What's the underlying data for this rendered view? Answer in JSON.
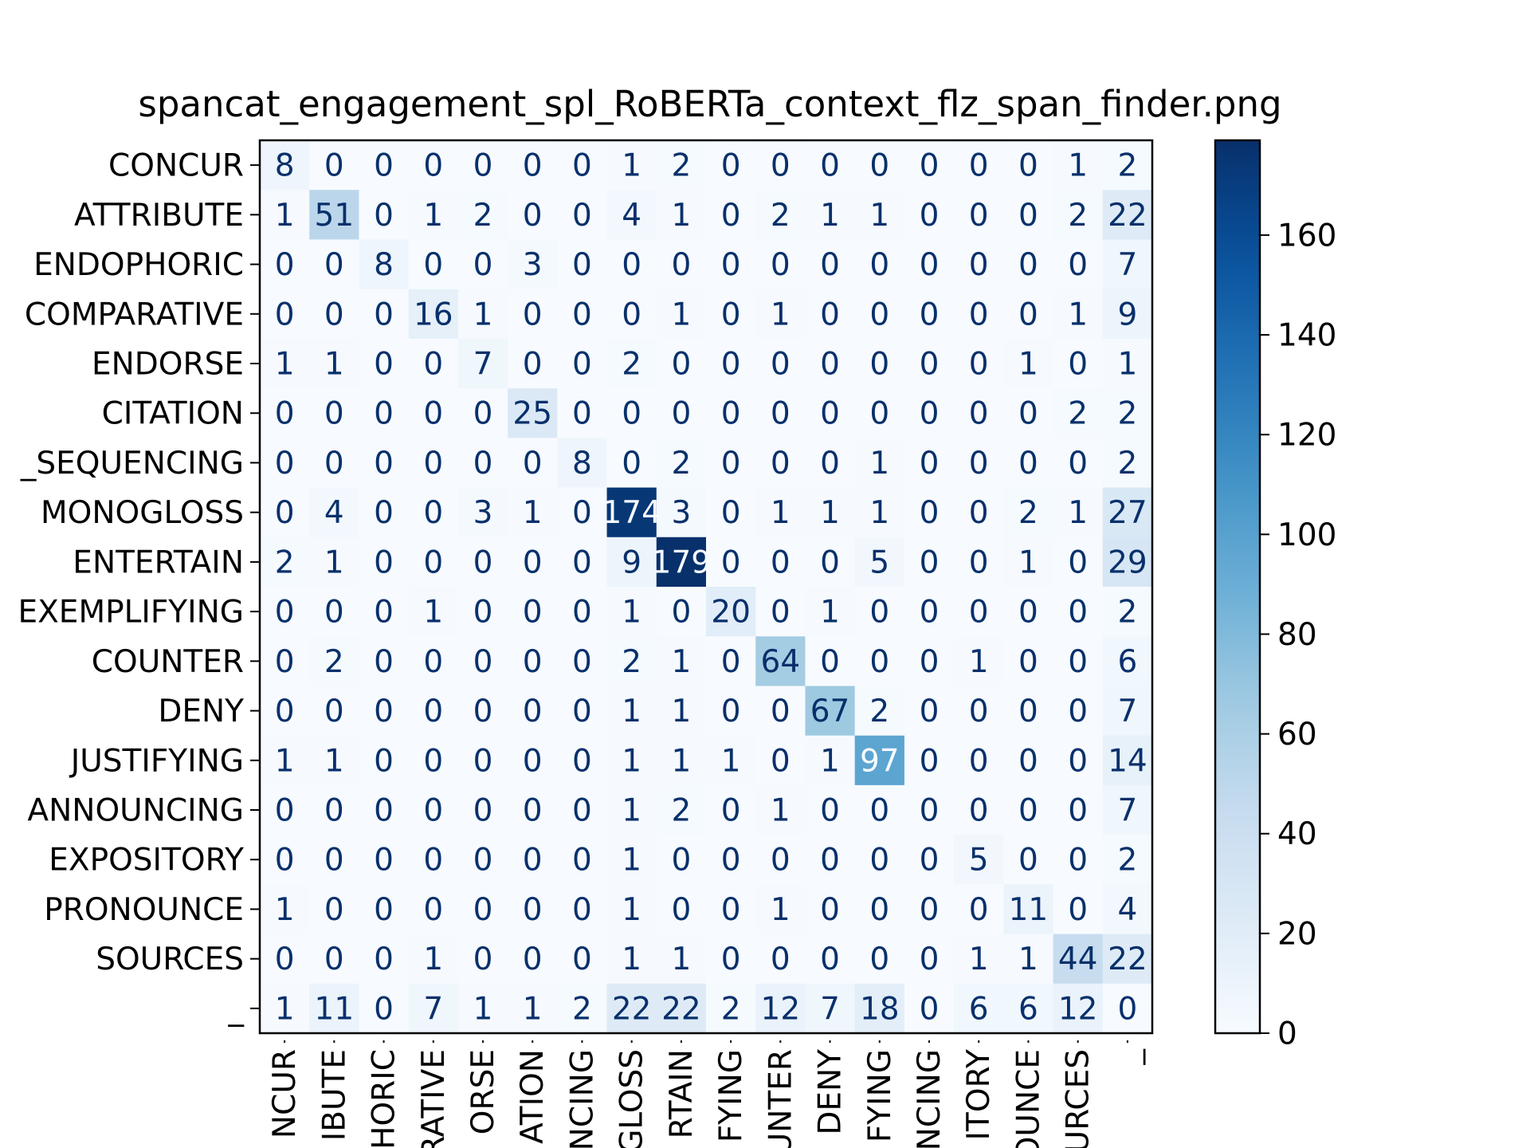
{
  "chart_data": {
    "type": "heatmap",
    "title": "spancat_engagement_spl_RoBERTa_context_flz_span_finder.png",
    "xlabel": "",
    "ylabel": "",
    "row_labels": [
      "CONCUR",
      "ATTRIBUTE",
      "ENDOPHORIC",
      "COMPARATIVE",
      "ENDORSE",
      "CITATION",
      "_SEQUENCING",
      "MONOGLOSS",
      "ENTERTAIN",
      "EXEMPLIFYING",
      "COUNTER",
      "DENY",
      "JUSTIFYING",
      "ANNOUNCING",
      "EXPOSITORY",
      "PRONOUNCE",
      "SOURCES",
      "_"
    ],
    "col_labels": [
      "NCUR",
      "IBUTE",
      "HORIC",
      "RATIVE",
      "ORSE",
      "ATION",
      "NCING",
      "GLOSS",
      "RTAIN",
      "FYING",
      "UNTER",
      "DENY",
      "FYING",
      "NCING",
      "ITORY",
      "OUNCE",
      "URCES",
      "_"
    ],
    "matrix": [
      [
        8,
        0,
        0,
        0,
        0,
        0,
        0,
        1,
        2,
        0,
        0,
        0,
        0,
        0,
        0,
        0,
        1,
        2
      ],
      [
        1,
        51,
        0,
        1,
        2,
        0,
        0,
        4,
        1,
        0,
        2,
        1,
        1,
        0,
        0,
        0,
        2,
        22
      ],
      [
        0,
        0,
        8,
        0,
        0,
        3,
        0,
        0,
        0,
        0,
        0,
        0,
        0,
        0,
        0,
        0,
        0,
        7
      ],
      [
        0,
        0,
        0,
        16,
        1,
        0,
        0,
        0,
        1,
        0,
        1,
        0,
        0,
        0,
        0,
        0,
        1,
        9
      ],
      [
        1,
        1,
        0,
        0,
        7,
        0,
        0,
        2,
        0,
        0,
        0,
        0,
        0,
        0,
        0,
        1,
        0,
        1
      ],
      [
        0,
        0,
        0,
        0,
        0,
        25,
        0,
        0,
        0,
        0,
        0,
        0,
        0,
        0,
        0,
        0,
        2,
        2
      ],
      [
        0,
        0,
        0,
        0,
        0,
        0,
        8,
        0,
        2,
        0,
        0,
        0,
        1,
        0,
        0,
        0,
        0,
        2
      ],
      [
        0,
        4,
        0,
        0,
        3,
        1,
        0,
        174,
        3,
        0,
        1,
        1,
        1,
        0,
        0,
        2,
        1,
        27
      ],
      [
        2,
        1,
        0,
        0,
        0,
        0,
        0,
        9,
        179,
        0,
        0,
        0,
        5,
        0,
        0,
        1,
        0,
        29
      ],
      [
        0,
        0,
        0,
        1,
        0,
        0,
        0,
        1,
        0,
        20,
        0,
        1,
        0,
        0,
        0,
        0,
        0,
        2
      ],
      [
        0,
        2,
        0,
        0,
        0,
        0,
        0,
        2,
        1,
        0,
        64,
        0,
        0,
        0,
        1,
        0,
        0,
        6
      ],
      [
        0,
        0,
        0,
        0,
        0,
        0,
        0,
        1,
        1,
        0,
        0,
        67,
        2,
        0,
        0,
        0,
        0,
        7
      ],
      [
        1,
        1,
        0,
        0,
        0,
        0,
        0,
        1,
        1,
        1,
        0,
        1,
        97,
        0,
        0,
        0,
        0,
        14
      ],
      [
        0,
        0,
        0,
        0,
        0,
        0,
        0,
        1,
        2,
        0,
        1,
        0,
        0,
        0,
        0,
        0,
        0,
        7
      ],
      [
        0,
        0,
        0,
        0,
        0,
        0,
        0,
        1,
        0,
        0,
        0,
        0,
        0,
        0,
        5,
        0,
        0,
        2
      ],
      [
        1,
        0,
        0,
        0,
        0,
        0,
        0,
        1,
        0,
        0,
        1,
        0,
        0,
        0,
        0,
        11,
        0,
        4
      ],
      [
        0,
        0,
        0,
        1,
        0,
        0,
        0,
        1,
        1,
        0,
        0,
        0,
        0,
        0,
        1,
        1,
        44,
        22
      ],
      [
        1,
        11,
        0,
        7,
        1,
        1,
        2,
        22,
        22,
        2,
        12,
        7,
        18,
        0,
        6,
        6,
        12,
        0
      ]
    ],
    "colormap": "Blues",
    "vmin": 0,
    "vmax": 179,
    "colorbar_ticks": [
      0,
      20,
      40,
      60,
      80,
      100,
      120,
      140,
      160
    ],
    "grid": false
  }
}
